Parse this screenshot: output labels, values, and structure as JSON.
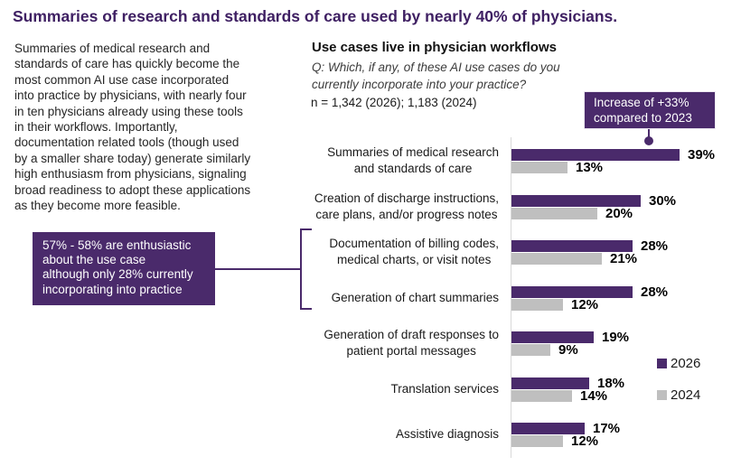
{
  "page": {
    "title": "Summaries of research and standards of care used by nearly 40% of physicians."
  },
  "intro": {
    "text": "Summaries of medical research and\nstandards of care has quickly become the\nmost common AI use case incorporated\ninto practice by physicians, with nearly four\nin ten physicians already using these tools\nin their workflows. Importantly,\ndocumentation related tools (though used\nby a smaller share today) generate similarly\nhigh enthusiasm from physicians, signaling\nbroad readiness to adopt these applications\nas they become more feasible."
  },
  "callout": {
    "text": "57% - 58% are enthusiastic\nabout the use case\nalthough only 28% currently\nincorporating into practice",
    "background": "#4a2a6b"
  },
  "colors": {
    "brand_purple": "#4a2a6b",
    "title_purple": "#3f2063",
    "gray_2024": "#bfbfbf",
    "axis_gray": "#d9d9d9"
  },
  "chart_data": {
    "type": "bar",
    "orientation": "horizontal",
    "title": "Use cases live in physician workflows",
    "question": "Q: Which, if any, of these AI use cases do you\ncurrently incorporate into your practice?",
    "sample_note": "n = 1,342 (2026); 1,183 (2024)",
    "annotation": {
      "text": "Increase of +33%\ncompared to 2023",
      "target_category": "Summaries of medical research and standards of care"
    },
    "categories": [
      "Summaries of medical research\nand standards of care",
      "Creation of discharge instructions,\ncare plans, and/or progress notes",
      "Documentation of billing codes,\nmedical charts, or visit notes",
      "Generation of chart summaries",
      "Generation of draft responses to\npatient portal messages",
      "Translation services",
      "Assistive diagnosis"
    ],
    "series": [
      {
        "name": "2026",
        "color": "#4a2a6b",
        "values": [
          39,
          30,
          28,
          28,
          19,
          18,
          17
        ]
      },
      {
        "name": "2024",
        "color": "#bfbfbf",
        "values": [
          13,
          20,
          21,
          12,
          9,
          14,
          12
        ]
      }
    ],
    "value_suffix": "%",
    "xlim": [
      0,
      42
    ],
    "grid": false,
    "legend_position": "right",
    "bracket_category_indexes": [
      2,
      3
    ]
  }
}
